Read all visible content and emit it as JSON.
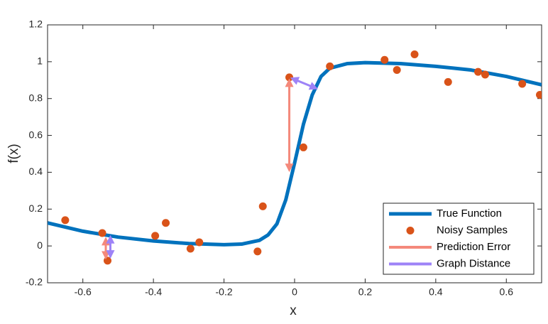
{
  "chart_data": {
    "type": "line",
    "xlabel": "x",
    "ylabel": "f(x)",
    "xlim": [
      -0.7,
      0.7
    ],
    "ylim": [
      -0.2,
      1.2
    ],
    "xticks": [
      -0.6,
      -0.4,
      -0.2,
      0,
      0.2,
      0.4,
      0.6
    ],
    "yticks": [
      -0.2,
      0,
      0.2,
      0.4,
      0.6,
      0.8,
      1,
      1.2
    ],
    "grid": false,
    "legend": "lower right",
    "series": [
      {
        "name": "True Function",
        "type": "line",
        "color": "#0072bd",
        "x": [
          -0.7,
          -0.6,
          -0.5,
          -0.4,
          -0.3,
          -0.2,
          -0.15,
          -0.1,
          -0.075,
          -0.05,
          -0.025,
          0,
          0.025,
          0.05,
          0.075,
          0.1,
          0.15,
          0.2,
          0.3,
          0.4,
          0.5,
          0.6,
          0.7
        ],
        "values": [
          0.125,
          0.08,
          0.048,
          0.027,
          0.013,
          0.007,
          0.01,
          0.03,
          0.06,
          0.12,
          0.25,
          0.45,
          0.66,
          0.82,
          0.92,
          0.965,
          0.99,
          0.995,
          0.99,
          0.975,
          0.955,
          0.92,
          0.875
        ]
      },
      {
        "name": "Noisy Samples",
        "type": "scatter",
        "color": "#d95319",
        "x": [
          -0.65,
          -0.545,
          -0.53,
          -0.395,
          -0.365,
          -0.295,
          -0.27,
          -0.105,
          -0.09,
          -0.015,
          0.025,
          0.1,
          0.255,
          0.29,
          0.34,
          0.435,
          0.52,
          0.54,
          0.645,
          0.695
        ],
        "values": [
          0.14,
          0.07,
          -0.08,
          0.055,
          0.125,
          -0.015,
          0.02,
          -0.03,
          0.215,
          0.915,
          0.535,
          0.975,
          1.01,
          0.955,
          1.04,
          0.89,
          0.945,
          0.93,
          0.88,
          0.82
        ]
      },
      {
        "name": "Prediction Error",
        "type": "arrow",
        "color": "#f4897b",
        "segments": [
          {
            "x": [
              -0.015,
              -0.015
            ],
            "values": [
              0.9,
              0.41
            ]
          },
          {
            "x": [
              -0.535,
              -0.535
            ],
            "values": [
              -0.065,
              0.04
            ]
          }
        ]
      },
      {
        "name": "Graph Distance",
        "type": "arrow",
        "color": "#9e83f7",
        "segments": [
          {
            "x": [
              -0.008,
              0.062
            ],
            "values": [
              0.91,
              0.855
            ]
          },
          {
            "x": [
              -0.522,
              -0.522
            ],
            "values": [
              -0.06,
              0.05
            ]
          }
        ]
      }
    ]
  }
}
